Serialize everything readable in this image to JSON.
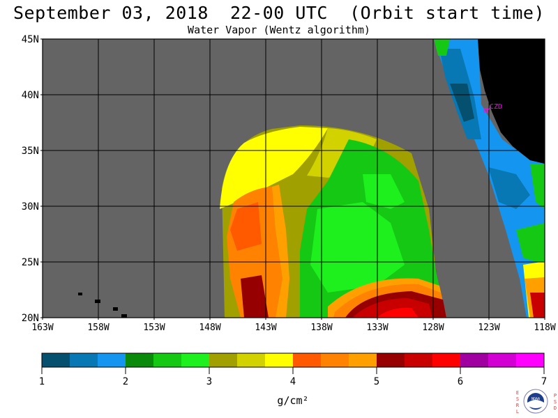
{
  "header": {
    "title": "September 03, 2018  22-00 UTC  (Orbit start time)",
    "subtitle": "Water Vapor (Wentz algorithm)"
  },
  "map": {
    "lat_labels": [
      "45N",
      "40N",
      "35N",
      "30N",
      "25N",
      "20N"
    ],
    "lon_labels": [
      "163W",
      "158W",
      "153W",
      "148W",
      "143W",
      "138W",
      "133W",
      "128W",
      "123W",
      "118W"
    ],
    "station_label": "CZD"
  },
  "colorbar": {
    "tick_labels": [
      "1",
      "2",
      "3",
      "4",
      "5",
      "6",
      "7"
    ],
    "unit_label": "g/cm²",
    "colors": [
      "#05506e",
      "#0878b4",
      "#1496f0",
      "#0a8a0a",
      "#14c814",
      "#1ef01e",
      "#a0a000",
      "#d2d200",
      "#ffff00",
      "#ff5a00",
      "#ff8200",
      "#ffa000",
      "#960000",
      "#c80000",
      "#ff0000",
      "#a000a0",
      "#d200d2",
      "#ff00ff"
    ]
  },
  "logo": {
    "left_letters": "ESRL",
    "right_letters": "PSD",
    "center_text": "NOAA"
  }
}
